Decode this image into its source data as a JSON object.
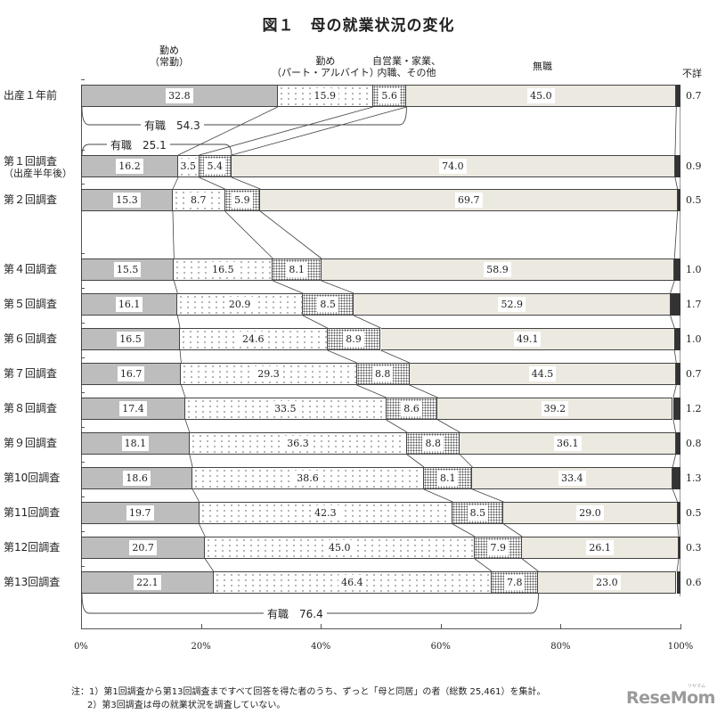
{
  "title": "図１　母の就業状況の変化",
  "legend": {
    "regular": [
      "勤め",
      "（常勤）"
    ],
    "part_time": [
      "勤め",
      "（パート・アルバイト）"
    ],
    "self_employed": [
      "自営業・家業、",
      "内職、その他"
    ],
    "unemployed": [
      "無職"
    ],
    "unknown": [
      "不詳"
    ]
  },
  "rows": [
    {
      "label": "出産１年前",
      "sub": "",
      "values": [
        32.8,
        15.9,
        5.6,
        45.0,
        0.7
      ],
      "labels": [
        "32.8",
        "15.9",
        "5.6",
        "45.0",
        "0.7"
      ]
    },
    {
      "label": "第１回調査",
      "sub": "（出産半年後）",
      "values": [
        16.2,
        3.5,
        5.4,
        74.0,
        0.9
      ],
      "labels": [
        "16.2",
        "3.5",
        "5.4",
        "74.0",
        "0.9"
      ]
    },
    {
      "label": "第２回調査",
      "sub": "",
      "values": [
        15.3,
        8.7,
        5.9,
        69.7,
        0.5
      ],
      "labels": [
        "15.3",
        "8.7",
        "5.9",
        "69.7",
        "0.5"
      ]
    },
    {
      "label": "第４回調査",
      "sub": "",
      "values": [
        15.5,
        16.5,
        8.1,
        58.9,
        1.0
      ],
      "labels": [
        "15.5",
        "16.5",
        "8.1",
        "58.9",
        "1.0"
      ]
    },
    {
      "label": "第５回調査",
      "sub": "",
      "values": [
        16.1,
        20.9,
        8.5,
        52.9,
        1.7
      ],
      "labels": [
        "16.1",
        "20.9",
        "8.5",
        "52.9",
        "1.7"
      ]
    },
    {
      "label": "第６回調査",
      "sub": "",
      "values": [
        16.5,
        24.6,
        8.9,
        49.1,
        1.0
      ],
      "labels": [
        "16.5",
        "24.6",
        "8.9",
        "49.1",
        "1.0"
      ]
    },
    {
      "label": "第７回調査",
      "sub": "",
      "values": [
        16.7,
        29.3,
        8.8,
        44.5,
        0.7
      ],
      "labels": [
        "16.7",
        "29.3",
        "8.8",
        "44.5",
        "0.7"
      ]
    },
    {
      "label": "第８回調査",
      "sub": "",
      "values": [
        17.4,
        33.5,
        8.6,
        39.2,
        1.2
      ],
      "labels": [
        "17.4",
        "33.5",
        "8.6",
        "39.2",
        "1.2"
      ]
    },
    {
      "label": "第９回調査",
      "sub": "",
      "values": [
        18.1,
        36.3,
        8.8,
        36.1,
        0.8
      ],
      "labels": [
        "18.1",
        "36.3",
        "8.8",
        "36.1",
        "0.8"
      ]
    },
    {
      "label": "第10回調査",
      "sub": "",
      "values": [
        18.6,
        38.6,
        8.1,
        33.4,
        1.3
      ],
      "labels": [
        "18.6",
        "38.6",
        "8.1",
        "33.4",
        "1.3"
      ]
    },
    {
      "label": "第11回調査",
      "sub": "",
      "values": [
        19.7,
        42.3,
        8.5,
        29.0,
        0.5
      ],
      "labels": [
        "19.7",
        "42.3",
        "8.5",
        "29.0",
        "0.5"
      ]
    },
    {
      "label": "第12回調査",
      "sub": "",
      "values": [
        20.7,
        45.0,
        7.9,
        26.1,
        0.3
      ],
      "labels": [
        "20.7",
        "45.0",
        "7.9",
        "26.1",
        "0.3"
      ]
    },
    {
      "label": "第13回調査",
      "sub": "",
      "values": [
        22.1,
        46.4,
        7.8,
        23.0,
        0.6
      ],
      "labels": [
        "22.1",
        "46.4",
        "7.8",
        "23.0",
        "0.6"
      ]
    }
  ],
  "braces": {
    "b1": "有職　54.3",
    "b2": "有職　25.1",
    "b3": "有職　76.4"
  },
  "x_ticks": [
    "0%",
    "20%",
    "40%",
    "60%",
    "80%",
    "100%"
  ],
  "notes": [
    "注：1）第1回調査から第13回調査まですべて回答を得た者のうち、ずっと「母と同居」の者（総数 25,461）を集計。",
    "2）第3回調査は母の就業状況を調査していない。"
  ],
  "logo": {
    "text": "ReseMom",
    "kana": "リセマム"
  },
  "colors": {
    "regular": "#bdbdbd",
    "part_time": "#ffffff",
    "self_employed": "#ffffff",
    "unemployed": "#ece9e1",
    "unknown": "#333333"
  },
  "chart_data": {
    "type": "bar",
    "orientation": "horizontal",
    "stacked": "percent",
    "title": "図１　母の就業状況の変化",
    "categories": [
      "出産１年前",
      "第１回調査（出産半年後）",
      "第２回調査",
      "第４回調査",
      "第５回調査",
      "第６回調査",
      "第７回調査",
      "第８回調査",
      "第９回調査",
      "第10回調査",
      "第11回調査",
      "第12回調査",
      "第13回調査"
    ],
    "series": [
      {
        "name": "勤め（常勤）",
        "values": [
          32.8,
          16.2,
          15.3,
          15.5,
          16.1,
          16.5,
          16.7,
          17.4,
          18.1,
          18.6,
          19.7,
          20.7,
          22.1
        ]
      },
      {
        "name": "勤め（パート・アルバイト）",
        "values": [
          15.9,
          3.5,
          8.7,
          16.5,
          20.9,
          24.6,
          29.3,
          33.5,
          36.3,
          38.6,
          42.3,
          45.0,
          46.4
        ]
      },
      {
        "name": "自営業・家業、内職、その他",
        "values": [
          5.6,
          5.4,
          5.9,
          8.1,
          8.5,
          8.9,
          8.8,
          8.6,
          8.8,
          8.1,
          8.5,
          7.9,
          7.8
        ]
      },
      {
        "name": "無職",
        "values": [
          45.0,
          74.0,
          69.7,
          58.9,
          52.9,
          49.1,
          44.5,
          39.2,
          36.1,
          33.4,
          29.0,
          26.1,
          23.0
        ]
      },
      {
        "name": "不詳",
        "values": [
          0.7,
          0.9,
          0.5,
          1.0,
          1.7,
          1.0,
          0.7,
          1.2,
          0.8,
          1.3,
          0.5,
          0.3,
          0.6
        ]
      }
    ],
    "annotations": [
      "有職 54.3 (出産１年前)",
      "有職 25.1 (第１回調査)",
      "有職 76.4 (第13回調査)"
    ],
    "xlabel": "",
    "ylabel": "",
    "xlim": [
      0,
      100
    ],
    "x_ticks": [
      "0%",
      "20%",
      "40%",
      "60%",
      "80%",
      "100%"
    ],
    "grid": false,
    "legend_position": "top (labels above columns)"
  }
}
